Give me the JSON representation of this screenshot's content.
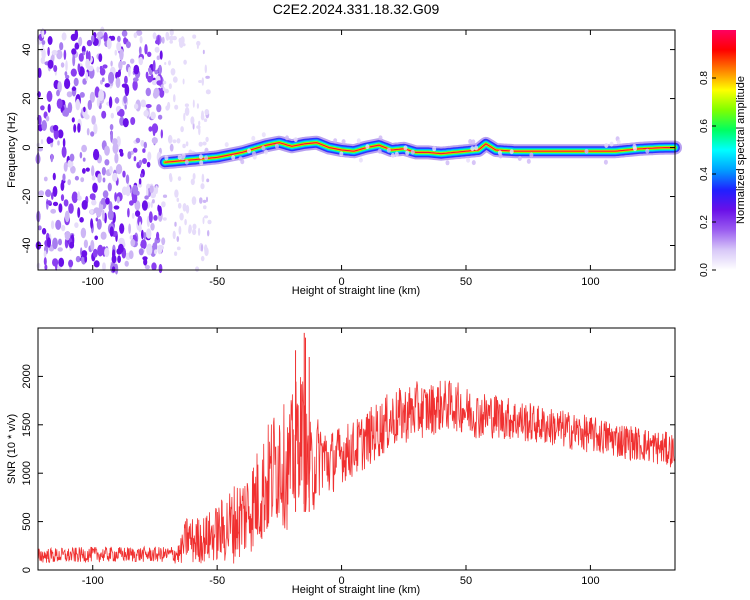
{
  "figure_title": "C2E2.2024.331.18.32.G09",
  "chart_data": [
    {
      "type": "heatmap",
      "xlabel": "Height of straight line (km)",
      "ylabel": "Frequency (Hz)",
      "xlim": [
        -122,
        134
      ],
      "ylim": [
        -50,
        48
      ],
      "xticks": [
        -100,
        -50,
        0,
        50,
        100
      ],
      "yticks": [
        -40,
        -20,
        0,
        20,
        40
      ],
      "colorbar": {
        "label": "Normalized spectral amplitude",
        "range": [
          0,
          1
        ],
        "ticks": [
          0.0,
          0.2,
          0.4,
          0.6,
          0.8
        ],
        "colors": [
          "#ffffff",
          "#d8c8f8",
          "#9a5cf0",
          "#6a10e8",
          "#2020ff",
          "#00a0ff",
          "#00ffff",
          "#00ff60",
          "#80ff00",
          "#ffff00",
          "#ff8000",
          "#ff0000",
          "#ff0060"
        ]
      },
      "noise_region_x": [
        -122,
        -72
      ],
      "sparse_noise_region_x": [
        -72,
        -53
      ],
      "signal_ridge": {
        "x": [
          -71,
          -60,
          -50,
          -40,
          -30,
          -25,
          -20,
          -15,
          -10,
          -5,
          0,
          5,
          10,
          15,
          20,
          25,
          30,
          35,
          40,
          45,
          50,
          55,
          58,
          62,
          70,
          80,
          90,
          100,
          110,
          120,
          130,
          134
        ],
        "freq_hz": [
          -6,
          -5,
          -4,
          -2,
          1,
          2,
          0.5,
          1.5,
          2,
          0,
          -1,
          -1.5,
          0,
          1,
          -1,
          -0.5,
          -2,
          -2,
          -2.5,
          -2,
          -1.5,
          -1,
          1.5,
          -1,
          -1.5,
          -1.5,
          -1.5,
          -1.5,
          -1.5,
          -0.5,
          0,
          0
        ]
      },
      "grid": false
    },
    {
      "type": "line",
      "xlabel": "Height of straight line (km)",
      "ylabel": "SNR (10 * v/v)",
      "xlim": [
        -122,
        134
      ],
      "ylim": [
        0,
        2500
      ],
      "xticks": [
        -100,
        -50,
        0,
        50,
        100
      ],
      "yticks": [
        0,
        500,
        1000,
        1500,
        2000
      ],
      "series": [
        {
          "color": "#f03030",
          "x": [
            -122,
            -110,
            -100,
            -90,
            -80,
            -70,
            -65,
            -62,
            -60,
            -55,
            -50,
            -45,
            -40,
            -35,
            -30,
            -27,
            -25,
            -22,
            -20,
            -18,
            -16,
            -15,
            -14,
            -12,
            -10,
            -8,
            -5,
            0,
            5,
            10,
            15,
            20,
            25,
            30,
            35,
            40,
            45,
            50,
            55,
            60,
            70,
            80,
            90,
            100,
            110,
            120,
            130,
            134
          ],
          "y": [
            150,
            150,
            160,
            160,
            160,
            160,
            170,
            350,
            300,
            320,
            380,
            450,
            550,
            700,
            900,
            1050,
            1200,
            1000,
            1150,
            1300,
            1500,
            1250,
            1100,
            1000,
            1150,
            1200,
            1100,
            1200,
            1250,
            1350,
            1450,
            1550,
            1600,
            1650,
            1650,
            1700,
            1700,
            1650,
            1600,
            1600,
            1550,
            1500,
            1450,
            1400,
            1350,
            1300,
            1250,
            1230
          ],
          "noise_amplitude": [
            80,
            80,
            80,
            80,
            80,
            80,
            120,
            250,
            250,
            250,
            300,
            400,
            450,
            500,
            600,
            650,
            700,
            600,
            650,
            700,
            600,
            600,
            550,
            500,
            450,
            400,
            350,
            300,
            300,
            300,
            300,
            300,
            300,
            300,
            280,
            270,
            260,
            250,
            250,
            240,
            220,
            200,
            200,
            190,
            190,
            180,
            180,
            180
          ]
        }
      ],
      "spikes": [
        {
          "x": -18.5,
          "y": 2270
        },
        {
          "x": -15,
          "y": 2450
        },
        {
          "x": -14.5,
          "y": 2400
        },
        {
          "x": -13,
          "y": 2200
        }
      ],
      "grid": false
    }
  ]
}
